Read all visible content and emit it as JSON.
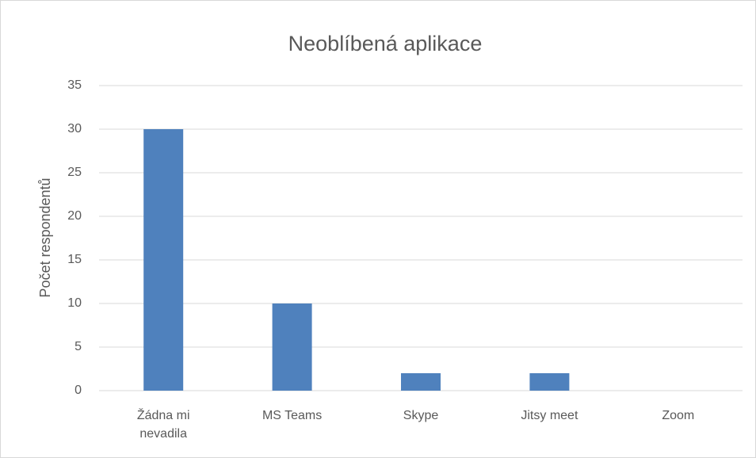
{
  "chart_data": {
    "type": "bar",
    "title": "Neoblíbená aplikace",
    "y_label": "Počet respondentů",
    "categories": [
      "Žádna mi nevadila",
      "MS Teams",
      "Skype",
      "Jitsy meet",
      "Zoom"
    ],
    "values": [
      30,
      10,
      2,
      2,
      0
    ],
    "color": "#4f81bd",
    "ylim": [
      0,
      35
    ],
    "yticks": [
      0,
      5,
      10,
      15,
      20,
      25,
      30,
      35
    ],
    "grid": true
  }
}
